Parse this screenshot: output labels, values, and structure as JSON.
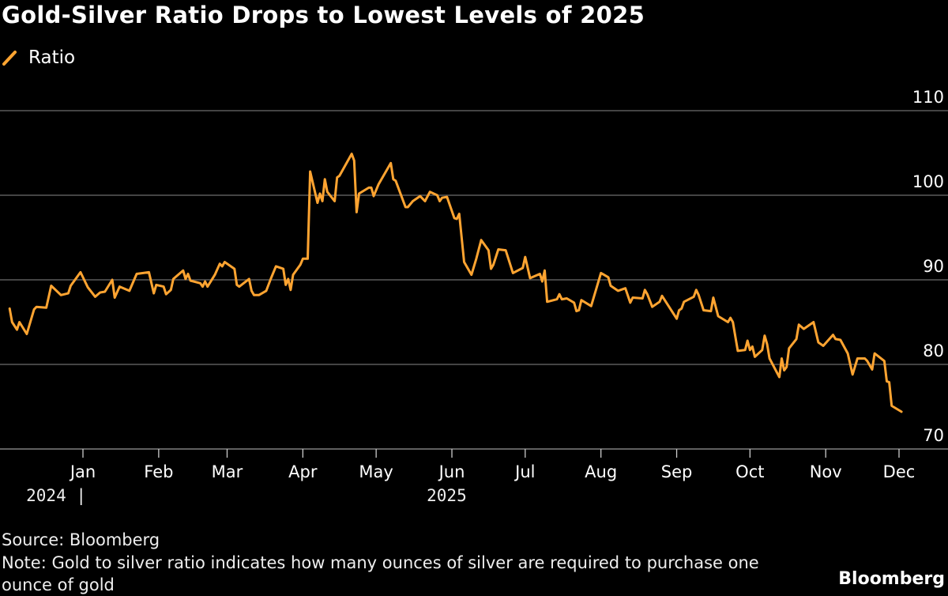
{
  "chart_data": {
    "type": "line",
    "title": "Gold-Silver Ratio Drops to Lowest Levels of 2025",
    "xlabel": "",
    "ylabel": "",
    "ylim": [
      70,
      110
    ],
    "yticks": [
      "110",
      "100",
      "90",
      "80",
      "70"
    ],
    "ytick_values": [
      110,
      100,
      90,
      80,
      70
    ],
    "y_axis_side": "right",
    "grid": true,
    "legend_position": "top-left",
    "xticks": [
      {
        "label": "Jan",
        "date": "2025-01-01"
      },
      {
        "label": "Feb",
        "date": "2025-02-01"
      },
      {
        "label": "Mar",
        "date": "2025-03-01"
      },
      {
        "label": "Apr",
        "date": "2025-04-01"
      },
      {
        "label": "May",
        "date": "2025-05-01"
      },
      {
        "label": "Jun",
        "date": "2025-06-01"
      },
      {
        "label": "Jul",
        "date": "2025-07-01"
      },
      {
        "label": "Aug",
        "date": "2025-08-01"
      },
      {
        "label": "Sep",
        "date": "2025-09-01"
      },
      {
        "label": "Oct",
        "date": "2025-10-01"
      },
      {
        "label": "Nov",
        "date": "2025-11-01"
      },
      {
        "label": "Dec",
        "date": "2025-12-01"
      }
    ],
    "year_labels": [
      {
        "label": "2024 |",
        "anchor_date": "2025-01-01"
      },
      {
        "label": "2025",
        "anchor_date": "2025-05-15"
      }
    ],
    "series": [
      {
        "name": "Ratio",
        "color": "#FFA431",
        "points": [
          [
            "2024-12-02",
            86.6
          ],
          [
            "2024-12-03",
            85.0
          ],
          [
            "2024-12-05",
            84.1
          ],
          [
            "2024-12-06",
            85.0
          ],
          [
            "2024-12-09",
            83.6
          ],
          [
            "2024-12-12",
            86.5
          ],
          [
            "2024-12-13",
            86.8
          ],
          [
            "2024-12-17",
            86.7
          ],
          [
            "2024-12-19",
            89.3
          ],
          [
            "2024-12-23",
            88.2
          ],
          [
            "2024-12-26",
            88.4
          ],
          [
            "2024-12-27",
            89.3
          ],
          [
            "2024-12-31",
            90.9
          ],
          [
            "2025-01-03",
            89.1
          ],
          [
            "2025-01-06",
            88.0
          ],
          [
            "2025-01-08",
            88.5
          ],
          [
            "2025-01-10",
            88.6
          ],
          [
            "2025-01-13",
            90.0
          ],
          [
            "2025-01-14",
            87.9
          ],
          [
            "2025-01-16",
            89.2
          ],
          [
            "2025-01-20",
            88.7
          ],
          [
            "2025-01-23",
            90.7
          ],
          [
            "2025-01-28",
            90.9
          ],
          [
            "2025-01-30",
            88.4
          ],
          [
            "2025-01-31",
            89.4
          ],
          [
            "2025-02-03",
            89.2
          ],
          [
            "2025-02-04",
            88.3
          ],
          [
            "2025-02-06",
            88.8
          ],
          [
            "2025-02-07",
            90.1
          ],
          [
            "2025-02-11",
            91.1
          ],
          [
            "2025-02-12",
            90.1
          ],
          [
            "2025-02-13",
            90.7
          ],
          [
            "2025-02-14",
            89.9
          ],
          [
            "2025-02-18",
            89.6
          ],
          [
            "2025-02-19",
            89.2
          ],
          [
            "2025-02-20",
            89.8
          ],
          [
            "2025-02-21",
            89.2
          ],
          [
            "2025-02-24",
            90.6
          ],
          [
            "2025-02-26",
            91.9
          ],
          [
            "2025-02-27",
            91.6
          ],
          [
            "2025-02-28",
            92.1
          ],
          [
            "2025-03-04",
            91.3
          ],
          [
            "2025-03-05",
            89.4
          ],
          [
            "2025-03-06",
            89.2
          ],
          [
            "2025-03-10",
            90.1
          ],
          [
            "2025-03-11",
            88.7
          ],
          [
            "2025-03-12",
            88.2
          ],
          [
            "2025-03-14",
            88.2
          ],
          [
            "2025-03-17",
            88.7
          ],
          [
            "2025-03-19",
            90.2
          ],
          [
            "2025-03-21",
            91.6
          ],
          [
            "2025-03-24",
            91.3
          ],
          [
            "2025-03-25",
            89.4
          ],
          [
            "2025-03-26",
            90.1
          ],
          [
            "2025-03-27",
            88.8
          ],
          [
            "2025-03-28",
            90.6
          ],
          [
            "2025-03-31",
            91.8
          ],
          [
            "2025-04-01",
            92.5
          ],
          [
            "2025-04-03",
            92.5
          ],
          [
            "2025-04-04",
            102.8
          ],
          [
            "2025-04-07",
            99.1
          ],
          [
            "2025-04-08",
            100.2
          ],
          [
            "2025-04-09",
            99.3
          ],
          [
            "2025-04-10",
            101.9
          ],
          [
            "2025-04-11",
            100.4
          ],
          [
            "2025-04-14",
            99.3
          ],
          [
            "2025-04-15",
            102.1
          ],
          [
            "2025-04-16",
            102.3
          ],
          [
            "2025-04-21",
            104.9
          ],
          [
            "2025-04-22",
            104.1
          ],
          [
            "2025-04-23",
            98.0
          ],
          [
            "2025-04-24",
            100.2
          ],
          [
            "2025-04-28",
            100.9
          ],
          [
            "2025-04-29",
            100.9
          ],
          [
            "2025-04-30",
            99.9
          ],
          [
            "2025-05-02",
            101.3
          ],
          [
            "2025-05-07",
            103.8
          ],
          [
            "2025-05-08",
            101.9
          ],
          [
            "2025-05-09",
            101.7
          ],
          [
            "2025-05-13",
            98.6
          ],
          [
            "2025-05-14",
            98.6
          ],
          [
            "2025-05-16",
            99.3
          ],
          [
            "2025-05-19",
            99.9
          ],
          [
            "2025-05-21",
            99.3
          ],
          [
            "2025-05-23",
            100.4
          ],
          [
            "2025-05-26",
            100.0
          ],
          [
            "2025-05-27",
            99.3
          ],
          [
            "2025-05-28",
            99.7
          ],
          [
            "2025-05-30",
            99.8
          ],
          [
            "2025-06-02",
            97.3
          ],
          [
            "2025-06-03",
            97.2
          ],
          [
            "2025-06-04",
            97.8
          ],
          [
            "2025-06-06",
            92.1
          ],
          [
            "2025-06-09",
            90.6
          ],
          [
            "2025-06-11",
            92.5
          ],
          [
            "2025-06-13",
            94.7
          ],
          [
            "2025-06-16",
            93.5
          ],
          [
            "2025-06-17",
            91.3
          ],
          [
            "2025-06-18",
            91.8
          ],
          [
            "2025-06-20",
            93.6
          ],
          [
            "2025-06-23",
            93.5
          ],
          [
            "2025-06-26",
            90.8
          ],
          [
            "2025-06-30",
            91.4
          ],
          [
            "2025-07-01",
            92.7
          ],
          [
            "2025-07-03",
            90.2
          ],
          [
            "2025-07-07",
            90.7
          ],
          [
            "2025-07-08",
            89.8
          ],
          [
            "2025-07-09",
            91.1
          ],
          [
            "2025-07-10",
            87.4
          ],
          [
            "2025-07-14",
            87.7
          ],
          [
            "2025-07-15",
            88.3
          ],
          [
            "2025-07-16",
            87.7
          ],
          [
            "2025-07-18",
            87.8
          ],
          [
            "2025-07-21",
            87.3
          ],
          [
            "2025-07-22",
            86.3
          ],
          [
            "2025-07-23",
            86.4
          ],
          [
            "2025-07-24",
            87.6
          ],
          [
            "2025-07-28",
            86.9
          ],
          [
            "2025-08-01",
            90.8
          ],
          [
            "2025-08-04",
            90.3
          ],
          [
            "2025-08-05",
            89.3
          ],
          [
            "2025-08-08",
            88.7
          ],
          [
            "2025-08-11",
            89.0
          ],
          [
            "2025-08-13",
            87.3
          ],
          [
            "2025-08-14",
            87.9
          ],
          [
            "2025-08-18",
            87.8
          ],
          [
            "2025-08-19",
            88.8
          ],
          [
            "2025-08-20",
            88.3
          ],
          [
            "2025-08-22",
            86.8
          ],
          [
            "2025-08-25",
            87.4
          ],
          [
            "2025-08-26",
            88.1
          ],
          [
            "2025-09-01",
            85.4
          ],
          [
            "2025-09-02",
            86.4
          ],
          [
            "2025-09-03",
            86.6
          ],
          [
            "2025-09-04",
            87.4
          ],
          [
            "2025-09-08",
            88.0
          ],
          [
            "2025-09-09",
            88.8
          ],
          [
            "2025-09-10",
            88.2
          ],
          [
            "2025-09-12",
            86.4
          ],
          [
            "2025-09-15",
            86.3
          ],
          [
            "2025-09-16",
            87.9
          ],
          [
            "2025-09-18",
            85.7
          ],
          [
            "2025-09-22",
            85.0
          ],
          [
            "2025-09-23",
            85.5
          ],
          [
            "2025-09-24",
            85.0
          ],
          [
            "2025-09-26",
            81.6
          ],
          [
            "2025-09-29",
            81.7
          ],
          [
            "2025-09-30",
            82.8
          ],
          [
            "2025-10-01",
            81.7
          ],
          [
            "2025-10-02",
            82.1
          ],
          [
            "2025-10-03",
            80.9
          ],
          [
            "2025-10-06",
            81.7
          ],
          [
            "2025-10-07",
            83.4
          ],
          [
            "2025-10-08",
            82.4
          ],
          [
            "2025-10-09",
            80.7
          ],
          [
            "2025-10-13",
            78.5
          ],
          [
            "2025-10-14",
            80.7
          ],
          [
            "2025-10-15",
            79.3
          ],
          [
            "2025-10-16",
            79.7
          ],
          [
            "2025-10-17",
            81.9
          ],
          [
            "2025-10-20",
            83.0
          ],
          [
            "2025-10-21",
            84.7
          ],
          [
            "2025-10-23",
            84.2
          ],
          [
            "2025-10-27",
            85.0
          ],
          [
            "2025-10-29",
            82.6
          ],
          [
            "2025-10-31",
            82.2
          ],
          [
            "2025-11-04",
            83.5
          ],
          [
            "2025-11-05",
            83.0
          ],
          [
            "2025-11-07",
            82.9
          ],
          [
            "2025-11-10",
            81.3
          ],
          [
            "2025-11-12",
            78.8
          ],
          [
            "2025-11-14",
            80.7
          ],
          [
            "2025-11-17",
            80.7
          ],
          [
            "2025-11-18",
            80.4
          ],
          [
            "2025-11-20",
            79.4
          ],
          [
            "2025-11-21",
            81.3
          ],
          [
            "2025-11-25",
            80.4
          ],
          [
            "2025-11-26",
            78.0
          ],
          [
            "2025-11-27",
            77.9
          ],
          [
            "2025-11-28",
            75.1
          ],
          [
            "2025-12-02",
            74.4
          ]
        ]
      }
    ]
  },
  "footer": {
    "source": "Source: Bloomberg",
    "note_line1": "Note: Gold to silver ratio indicates how many ounces of silver are required to purchase one",
    "note_line2": "ounce of gold",
    "brand": "Bloomberg"
  },
  "colors": {
    "background": "#000000",
    "line": "#FFA431",
    "grid": "#7a7a7a",
    "text": "#ffffff"
  }
}
